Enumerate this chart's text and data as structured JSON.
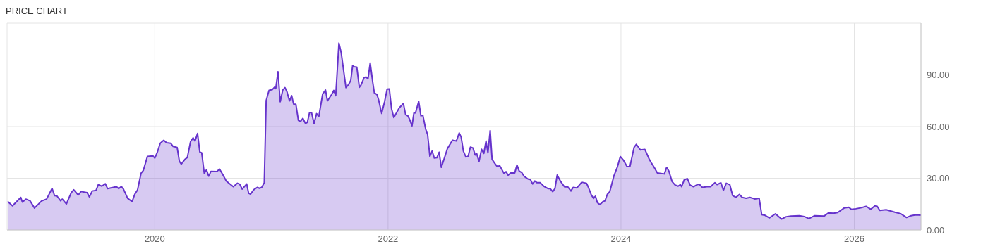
{
  "chart_data": {
    "type": "area",
    "title": "PRICE CHART",
    "x": [
      "2018-09-27",
      "2018-10-12",
      "2018-11-07",
      "2018-11-12",
      "2018-11-23",
      "2018-12-06",
      "2018-12-20",
      "2019-01-11",
      "2019-01-27",
      "2019-02-13",
      "2019-02-21",
      "2019-02-28",
      "2019-03-12",
      "2019-03-17",
      "2019-03-30",
      "2019-04-14",
      "2019-04-22",
      "2019-05-06",
      "2019-05-15",
      "2019-06-03",
      "2019-06-10",
      "2019-06-19",
      "2019-07-01",
      "2019-07-08",
      "2019-07-19",
      "2019-07-30",
      "2019-08-06",
      "2019-09-03",
      "2019-09-10",
      "2019-09-18",
      "2019-09-24",
      "2019-10-08",
      "2019-10-22",
      "2019-10-30",
      "2019-11-08",
      "2019-11-19",
      "2019-11-26",
      "2019-12-09",
      "2019-12-26",
      "2020-01-01",
      "2020-01-09",
      "2020-01-18",
      "2020-01-29",
      "2020-02-07",
      "2020-02-20",
      "2020-02-27",
      "2020-03-11",
      "2020-03-18",
      "2020-03-24",
      "2020-04-04",
      "2020-04-12",
      "2020-04-22",
      "2020-04-30",
      "2020-05-06",
      "2020-05-14",
      "2020-05-21",
      "2020-05-27",
      "2020-06-04",
      "2020-06-11",
      "2020-06-18",
      "2020-06-25",
      "2020-07-13",
      "2020-07-22",
      "2020-08-01",
      "2020-08-12",
      "2020-09-03",
      "2020-09-16",
      "2020-09-23",
      "2020-10-01",
      "2020-10-15",
      "2020-10-21",
      "2020-10-27",
      "2020-11-06",
      "2020-11-17",
      "2020-11-24",
      "2020-12-01",
      "2020-12-09",
      "2020-12-15",
      "2020-12-24",
      "2021-01-03",
      "2021-01-10",
      "2021-01-14",
      "2021-01-21",
      "2021-01-28",
      "2021-02-05",
      "2021-02-12",
      "2021-02-18",
      "2021-02-26",
      "2021-03-05",
      "2021-03-11",
      "2021-03-18",
      "2021-03-26",
      "2021-04-02",
      "2021-04-09",
      "2021-04-17",
      "2021-04-23",
      "2021-04-30",
      "2021-05-06",
      "2021-05-14",
      "2021-05-22",
      "2021-05-29",
      "2021-06-10",
      "2021-06-19",
      "2021-06-25",
      "2021-07-08",
      "2021-07-15",
      "2021-07-21",
      "2021-07-31",
      "2021-08-07",
      "2021-08-22",
      "2021-08-30",
      "2021-09-06",
      "2021-09-12",
      "2021-09-17",
      "2021-09-25",
      "2021-10-03",
      "2021-10-08",
      "2021-10-18",
      "2021-10-24",
      "2021-10-30",
      "2021-11-06",
      "2021-11-14",
      "2021-11-19",
      "2021-11-27",
      "2021-12-02",
      "2021-12-12",
      "2021-12-21",
      "2021-12-29",
      "2022-01-05",
      "2022-01-12",
      "2022-01-19",
      "2022-02-05",
      "2022-02-18",
      "2022-02-25",
      "2022-03-04",
      "2022-03-09",
      "2022-03-17",
      "2022-03-23",
      "2022-03-28",
      "2022-04-07",
      "2022-04-14",
      "2022-04-20",
      "2022-04-29",
      "2022-05-05",
      "2022-05-12",
      "2022-05-19",
      "2022-05-26",
      "2022-06-03",
      "2022-06-10",
      "2022-06-17",
      "2022-07-06",
      "2022-07-22",
      "2022-08-03",
      "2022-08-12",
      "2022-08-18",
      "2022-08-25",
      "2022-09-02",
      "2022-09-09",
      "2022-09-16",
      "2022-09-24",
      "2022-10-01",
      "2022-10-06",
      "2022-10-13",
      "2022-10-21",
      "2022-10-28",
      "2022-11-04",
      "2022-11-10",
      "2022-11-17",
      "2022-11-23",
      "2022-12-02",
      "2022-12-09",
      "2022-12-17",
      "2022-12-30",
      "2023-01-06",
      "2023-01-12",
      "2023-01-21",
      "2023-02-02",
      "2023-02-09",
      "2023-02-16",
      "2023-02-24",
      "2023-03-03",
      "2023-03-16",
      "2023-03-23",
      "2023-03-30",
      "2023-04-06",
      "2023-04-13",
      "2023-04-23",
      "2023-05-04",
      "2023-05-17",
      "2023-05-24",
      "2023-06-01",
      "2023-06-08",
      "2023-06-15",
      "2023-06-26",
      "2023-07-08",
      "2023-07-18",
      "2023-07-28",
      "2023-08-04",
      "2023-08-16",
      "2023-08-31",
      "2023-09-15",
      "2023-09-21",
      "2023-09-30",
      "2023-10-07",
      "2023-10-13",
      "2023-10-19",
      "2023-10-27",
      "2023-11-06",
      "2023-11-12",
      "2023-11-19",
      "2023-11-27",
      "2023-12-10",
      "2023-12-21",
      "2023-12-30",
      "2024-01-08",
      "2024-01-20",
      "2024-01-29",
      "2024-02-11",
      "2024-02-18",
      "2024-03-02",
      "2024-03-16",
      "2024-03-30",
      "2024-04-05",
      "2024-04-14",
      "2024-04-24",
      "2024-05-16",
      "2024-05-23",
      "2024-05-30",
      "2024-06-09",
      "2024-06-19",
      "2024-06-28",
      "2024-07-05",
      "2024-07-09",
      "2024-07-17",
      "2024-07-27",
      "2024-08-05",
      "2024-08-15",
      "2024-08-28",
      "2024-09-03",
      "2024-09-12",
      "2024-09-26",
      "2024-10-08",
      "2024-10-21",
      "2024-10-28",
      "2024-11-09",
      "2024-11-17",
      "2024-11-26",
      "2024-12-07",
      "2024-12-16",
      "2024-12-26",
      "2025-01-06",
      "2025-01-15",
      "2025-01-27",
      "2025-02-08",
      "2025-02-23",
      "2025-03-09",
      "2025-03-17",
      "2025-03-26",
      "2025-04-10",
      "2025-04-29",
      "2025-05-18",
      "2025-06-02",
      "2025-06-17",
      "2025-07-13",
      "2025-07-28",
      "2025-08-12",
      "2025-08-30",
      "2025-09-29",
      "2025-10-12",
      "2025-10-28",
      "2025-11-10",
      "2025-12-01",
      "2025-12-15",
      "2025-12-23",
      "2026-01-06",
      "2026-01-21",
      "2026-02-07",
      "2026-02-22",
      "2026-03-07",
      "2026-03-14",
      "2026-03-22",
      "2026-04-11",
      "2026-05-08",
      "2026-05-27",
      "2026-06-14",
      "2026-06-28",
      "2026-07-13",
      "2026-07-29"
    ],
    "series": [
      {
        "color": "#6633cc",
        "values": [
          16.5,
          14.0,
          18.9,
          16.1,
          17.9,
          16.9,
          12.7,
          16.8,
          17.9,
          24.1,
          19.9,
          19.8,
          16.9,
          17.9,
          15.1,
          21.6,
          23.3,
          20.3,
          22.3,
          21.6,
          19.2,
          22.6,
          23.0,
          26.3,
          25.4,
          26.8,
          24.0,
          25.1,
          24.0,
          25.2,
          24.0,
          18.3,
          16.5,
          20.6,
          23.3,
          32.9,
          34.5,
          42.7,
          43.0,
          41.7,
          45.1,
          50.3,
          52.0,
          50.6,
          50.3,
          48.5,
          47.9,
          39.9,
          38.2,
          40.9,
          42.1,
          51.2,
          53.5,
          51.6,
          56.0,
          45.3,
          44.7,
          32.9,
          34.9,
          31.2,
          34.0,
          33.9,
          35.3,
          32.1,
          28.4,
          25.1,
          27.1,
          26.6,
          23.7,
          26.7,
          21.3,
          20.8,
          23.3,
          24.7,
          24.2,
          24.7,
          27.4,
          75.1,
          81.0,
          81.4,
          82.8,
          82.0,
          91.8,
          74.4,
          81.2,
          82.6,
          80.3,
          74.9,
          77.9,
          73.0,
          73.0,
          63.5,
          63.0,
          64.8,
          61.8,
          62.4,
          68.2,
          68.2,
          61.8,
          67.5,
          65.8,
          78.9,
          81.2,
          74.9,
          78.6,
          81.0,
          77.9,
          108.5,
          103.0,
          82.6,
          84.3,
          86.7,
          95.5,
          94.7,
          94.5,
          82.8,
          84.0,
          88.4,
          88.8,
          87.6,
          96.9,
          85.7,
          79.5,
          78.6,
          75.8,
          67.6,
          74.4,
          81.7,
          81.8,
          70.3,
          65.2,
          70.8,
          73.4,
          66.9,
          66.2,
          64.4,
          60.4,
          67.9,
          68.0,
          74.6,
          66.2,
          66.6,
          58.4,
          55.3,
          42.7,
          45.8,
          41.7,
          41.9,
          45.1,
          36.3,
          47.2,
          52.1,
          51.6,
          56.3,
          53.9,
          45.8,
          42.3,
          42.8,
          48.1,
          47.6,
          43.5,
          44.2,
          39.7,
          46.8,
          44.4,
          51.6,
          44.8,
          57.7,
          40.9,
          38.5,
          36.8,
          37.3,
          32.9,
          33.8,
          31.8,
          33.1,
          33.1,
          37.7,
          34.1,
          33.3,
          31.2,
          29.5,
          29.3,
          26.7,
          28.4,
          27.4,
          27.4,
          25.4,
          24.0,
          24.0,
          22.2,
          24.0,
          31.8,
          28.1,
          25.0,
          25.1,
          22.6,
          24.7,
          24.4,
          27.7,
          27.1,
          24.7,
          20.3,
          18.3,
          19.6,
          15.8,
          14.7,
          16.5,
          16.9,
          20.6,
          22.3,
          31.5,
          36.7,
          42.6,
          40.7,
          36.7,
          36.8,
          47.9,
          49.7,
          46.4,
          46.7,
          40.9,
          39.0,
          36.3,
          33.1,
          32.5,
          36.3,
          34.2,
          28.1,
          26.0,
          25.4,
          26.3,
          25.1,
          29.0,
          29.8,
          26.0,
          25.1,
          26.4,
          26.4,
          24.7,
          25.1,
          25.1,
          27.4,
          26.3,
          27.4,
          23.0,
          27.1,
          26.3,
          19.9,
          18.9,
          20.6,
          18.9,
          18.4,
          18.9,
          18.0,
          18.4,
          8.9,
          8.6,
          7.0,
          9.4,
          6.3,
          7.7,
          8.1,
          8.3,
          7.8,
          6.6,
          8.3,
          8.1,
          9.9,
          9.7,
          10.1,
          12.8,
          13.2,
          11.9,
          12.3,
          12.8,
          13.7,
          12.0,
          14.1,
          13.7,
          11.3,
          11.7,
          10.3,
          9.4,
          7.2,
          8.3,
          8.8,
          8.6
        ]
      }
    ],
    "xlim": [
      "2018-09-25",
      "2026-07-29"
    ],
    "xticks": [
      "2020",
      "2022",
      "2024",
      "2026"
    ],
    "ylim": [
      0,
      120
    ],
    "yticks": [
      {
        "value": 0,
        "label": "0.00"
      },
      {
        "value": 30,
        "label": "30.00"
      },
      {
        "value": 60,
        "label": "60.00"
      },
      {
        "value": 90,
        "label": "90.00"
      }
    ],
    "grid": true,
    "marker": "none",
    "line_style": "solid",
    "legend": false
  }
}
